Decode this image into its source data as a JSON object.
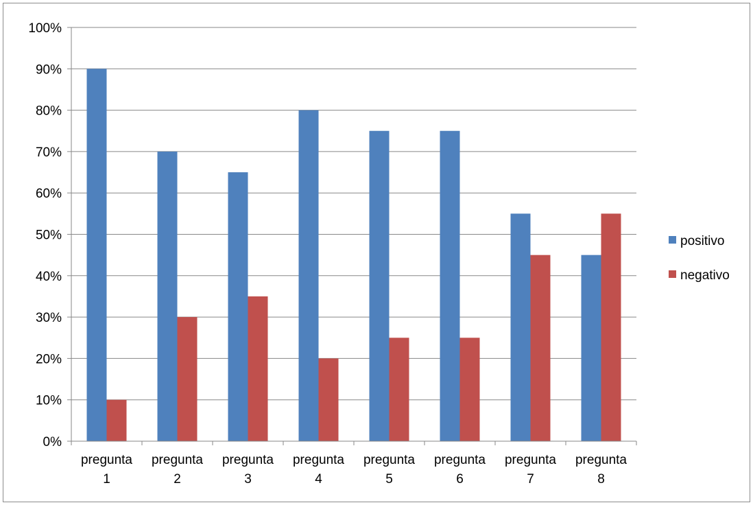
{
  "chart_data": {
    "type": "bar",
    "title": "",
    "xlabel": "",
    "ylabel": "",
    "ylim": [
      0,
      100
    ],
    "y_tick_labels": [
      "0%",
      "10%",
      "20%",
      "30%",
      "40%",
      "50%",
      "60%",
      "70%",
      "80%",
      "90%",
      "100%"
    ],
    "categories": [
      [
        "pregunta",
        "1"
      ],
      [
        "pregunta",
        "2"
      ],
      [
        "pregunta",
        "3"
      ],
      [
        "pregunta",
        "4"
      ],
      [
        "pregunta",
        "5"
      ],
      [
        "pregunta",
        "6"
      ],
      [
        "pregunta",
        "7"
      ],
      [
        "pregunta",
        "8"
      ]
    ],
    "series": [
      {
        "name": "positivo",
        "color": "#4f81bd",
        "values": [
          90,
          70,
          65,
          80,
          75,
          75,
          55,
          45
        ]
      },
      {
        "name": "negativo",
        "color": "#c0504d",
        "values": [
          10,
          30,
          35,
          20,
          25,
          25,
          45,
          55
        ]
      }
    ],
    "grid": true,
    "legend_position": "right"
  }
}
